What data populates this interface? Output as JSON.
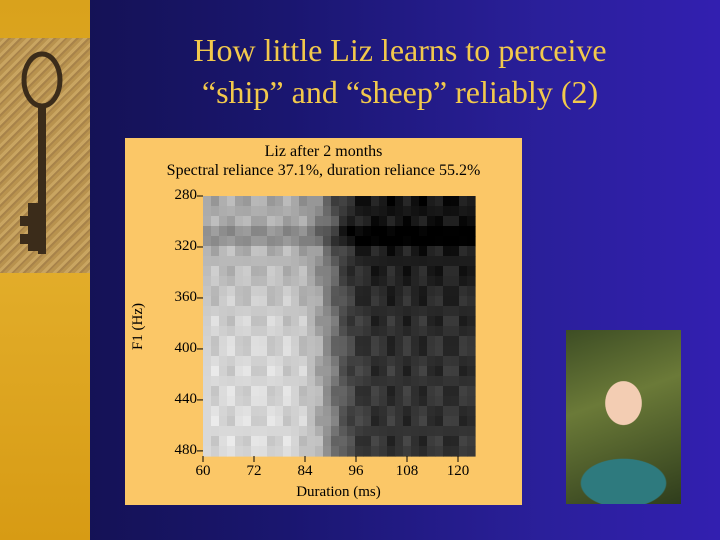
{
  "slide": {
    "title_line1": "How little Liz learns to perceive",
    "title_line2": "“ship” and “sheep” reliably (2)"
  },
  "colors": {
    "background": "#1e1a80",
    "title": "#f2c94c",
    "left_strip": "#dba41e",
    "chart_panel": "#fbc767"
  },
  "images": {
    "left": "key-photo",
    "right": "baby-photo"
  },
  "chart_data": {
    "type": "heatmap",
    "title": "Liz after 2 months",
    "subtitle": "Spectral reliance 37.1%, duration reliance 55.2%",
    "xlabel": "Duration (ms)",
    "ylabel": "F1 (Hz)",
    "x_ticks": [
      60,
      72,
      84,
      96,
      108,
      120
    ],
    "y_ticks": [
      280,
      320,
      360,
      400,
      440,
      480
    ],
    "xlim": [
      60,
      124
    ],
    "ylim": [
      280,
      484
    ],
    "description_values": "grayscale response map: light for short durations, dark for long durations (~>90 ms)"
  }
}
